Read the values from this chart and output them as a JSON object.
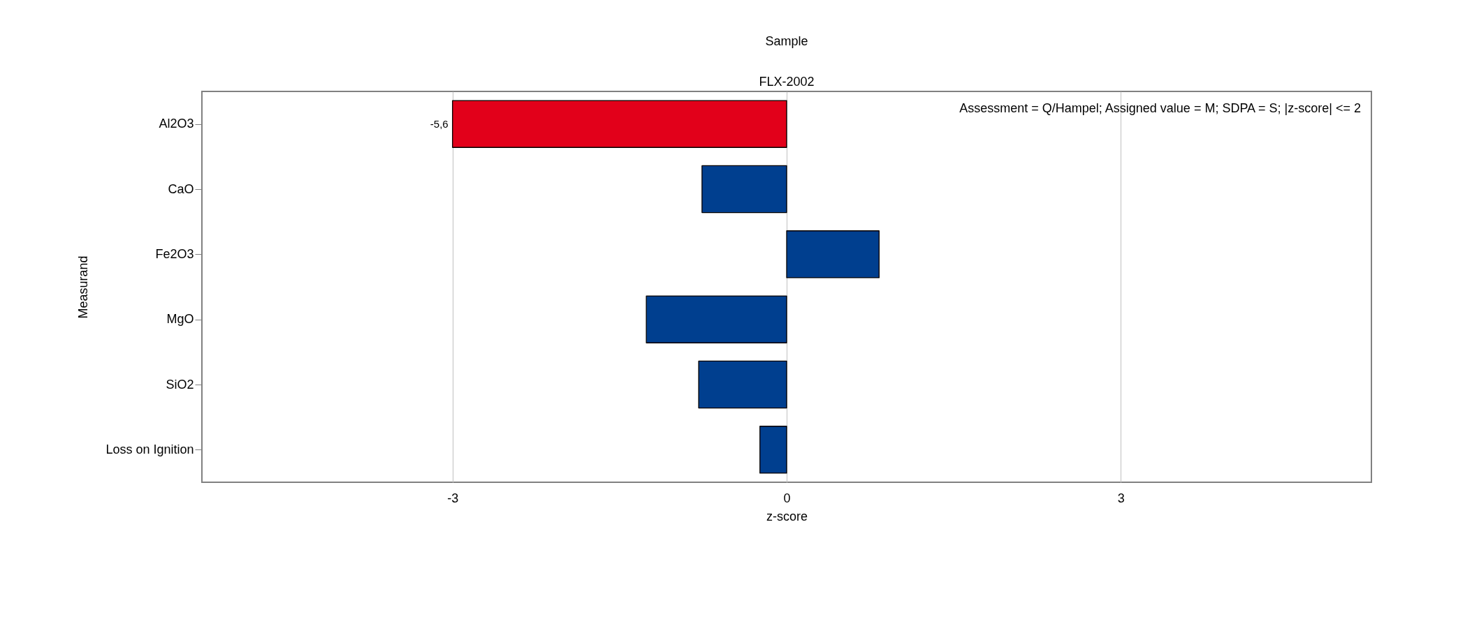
{
  "chart_data": {
    "type": "bar",
    "orientation": "horizontal",
    "title": "Sample",
    "subtitle": "FLX-2002",
    "xlabel": "z-score",
    "ylabel": "Measurand",
    "categories": [
      "Al2O3",
      "CaO",
      "Fe2O3",
      "MgO",
      "SiO2",
      "Loss on Ignition"
    ],
    "values": [
      -3,
      -0.76,
      0.83,
      -1.26,
      -0.79,
      -0.24
    ],
    "colors": [
      "#e2001a",
      "#003f8f",
      "#003f8f",
      "#003f8f",
      "#003f8f",
      "#003f8f"
    ],
    "xlim": [
      -5.25,
      5.25
    ],
    "xticks": [
      {
        "value": -3,
        "label": "-3"
      },
      {
        "value": 0,
        "label": "0"
      },
      {
        "value": 3,
        "label": "3"
      }
    ],
    "grid": "x",
    "legend": false,
    "annotations": [
      {
        "text": "-5,6",
        "x": -3,
        "y": "Al2O3"
      },
      "Assessment = Q/Hampel; Assigned value = M; SDPA = S; |z-score| <= 2"
    ]
  }
}
